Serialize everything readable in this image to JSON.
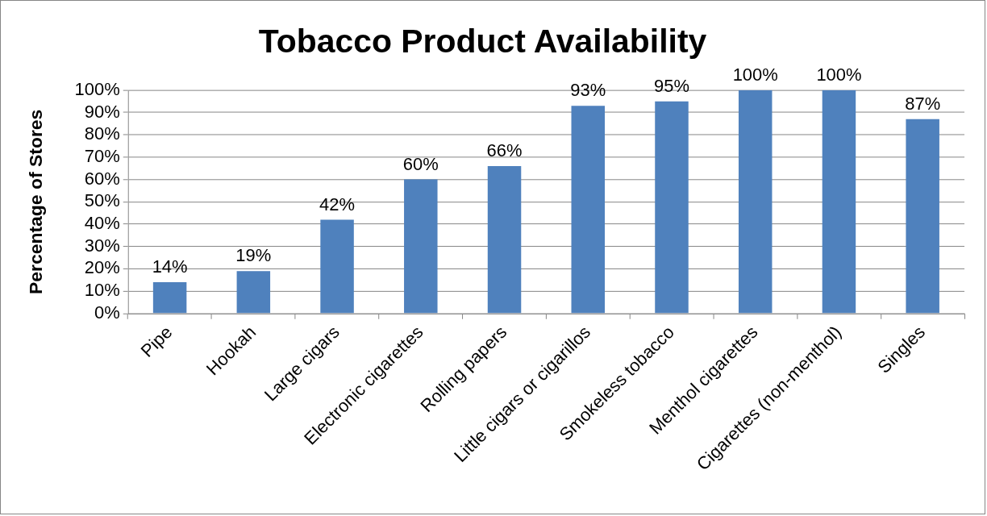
{
  "chart_data": {
    "type": "bar",
    "title": "Tobacco Product Availability",
    "ylabel": "Percentage of Stores",
    "categories": [
      "Pipe",
      "Hookah",
      "Large cigars",
      "Electronic cigarettes",
      "Rolling papers",
      "Little cigars or cigarillos",
      "Smokeless tobacco",
      "Menthol cigarettes",
      "Cigarettes (non-menthol)",
      "Singles"
    ],
    "values": [
      14,
      19,
      42,
      60,
      66,
      93,
      95,
      100,
      100,
      87
    ],
    "color": "#4f81bd",
    "value_labels": [
      "14%",
      "19%",
      "42%",
      "60%",
      "66%",
      "93%",
      "95%",
      "100%",
      "100%",
      "87%"
    ],
    "ylim": [
      0,
      100
    ],
    "yticks": [
      {
        "value": 0,
        "label": "0%"
      },
      {
        "value": 10,
        "label": "10%"
      },
      {
        "value": 20,
        "label": "20%"
      },
      {
        "value": 30,
        "label": "30%"
      },
      {
        "value": 40,
        "label": "40%"
      },
      {
        "value": 50,
        "label": "50%"
      },
      {
        "value": 60,
        "label": "60%"
      },
      {
        "value": 70,
        "label": "70%"
      },
      {
        "value": 80,
        "label": "80%"
      },
      {
        "value": 90,
        "label": "90%"
      },
      {
        "value": 100,
        "label": "100%"
      }
    ],
    "grid": "y"
  }
}
